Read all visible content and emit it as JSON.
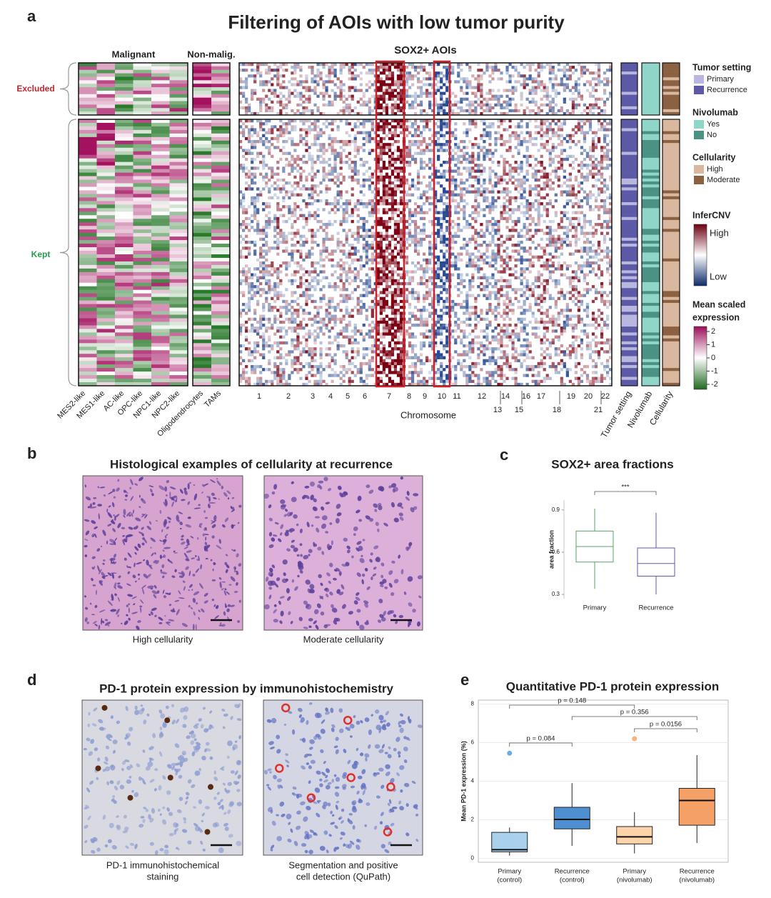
{
  "figure": {
    "panel_labels": [
      "a",
      "b",
      "c",
      "d",
      "e"
    ],
    "a": {
      "title": "Filtering of AOIs with low tumor purity",
      "group_headers": [
        "Malignant",
        "Non-malig.",
        "SOX2+ AOIs"
      ],
      "row_groups": [
        "Excluded",
        "Kept"
      ],
      "columns": [
        "MES2-like",
        "MES1-like",
        "AC-like",
        "OPC-like",
        "NPC1-like",
        "NPC2-like",
        "Oligodendrocytes",
        "TAMs"
      ],
      "chromosomes_top": [
        "1",
        "2",
        "3",
        "4",
        "5",
        "6",
        "7",
        "8",
        "9",
        "10",
        "11",
        "12",
        "14",
        "16",
        "17",
        "19",
        "20",
        "22"
      ],
      "chromosomes_bottom": [
        "13",
        "15",
        "18",
        "21"
      ],
      "x_label": "Chromosome",
      "annotation_columns": [
        "Tumor setting",
        "Nivolumab",
        "Cellularity"
      ]
    },
    "legend": {
      "groups": [
        {
          "title": "Tumor setting",
          "items": [
            {
              "label": "Primary",
              "color": "#b9b6e0"
            },
            {
              "label": "Recurrence",
              "color": "#5c5aa6"
            }
          ]
        },
        {
          "title": "Nivolumab",
          "items": [
            {
              "label": "Yes",
              "color": "#8fd6c9"
            },
            {
              "label": "No",
              "color": "#4b9285"
            }
          ]
        },
        {
          "title": "Cellularity",
          "items": [
            {
              "label": "High",
              "color": "#d9b89f"
            },
            {
              "label": "Moderate",
              "color": "#8c6142"
            }
          ]
        }
      ],
      "infercnv": {
        "title": "InferCNV",
        "high": "High",
        "low": "Low"
      },
      "mean_scaled": {
        "title_lines": [
          "Mean scaled",
          "expression"
        ],
        "ticks": [
          "2",
          "1",
          "0",
          "-1",
          "-2"
        ]
      }
    },
    "b": {
      "title": "Histological examples of cellularity at recurrence",
      "captions": [
        "High cellularity",
        "Moderate cellularity"
      ]
    },
    "d": {
      "title": "PD-1 protein expression by immunohistochemistry",
      "captions": [
        [
          "PD-1 immunohistochemical",
          "staining"
        ],
        [
          "Segmentation and positive",
          "cell detection (QuPath)"
        ]
      ]
    }
  },
  "chart_data": [
    {
      "type": "box",
      "title": "SOX2+ area fractions",
      "y_label": "area fraction",
      "categories": [
        [
          "Primary"
        ],
        [
          "Recurrence"
        ]
      ],
      "colors": [
        "#5aa469",
        "#5c5aa6"
      ],
      "whisker_low": [
        0.34,
        0.3
      ],
      "q1": [
        0.53,
        0.43
      ],
      "median": [
        0.64,
        0.52
      ],
      "q3": [
        0.75,
        0.63
      ],
      "whisker_high": [
        0.91,
        0.88
      ],
      "outliers": [
        [],
        []
      ],
      "ylim": [
        0.27,
        0.97
      ],
      "yticks": [
        0.3,
        0.6,
        0.9
      ],
      "grid": false,
      "annotations": [
        {
          "text": "***",
          "from": 0,
          "to": 1
        }
      ]
    },
    {
      "type": "box",
      "title": "Quantitative PD-1 protein expression",
      "y_label": "Mean PD-1 expression (%)",
      "categories": [
        [
          "Primary",
          "(control)"
        ],
        [
          "Recurrence",
          "(control)"
        ],
        [
          "Primary",
          "(nivolumab)"
        ],
        [
          "Recurrence",
          "(nivolumab)"
        ]
      ],
      "colors": [
        "#a9d1ee",
        "#4d8fd0",
        "#fdd3aa",
        "#f4a067"
      ],
      "point_colors": [
        "#6aaee0",
        "#2f6fb8",
        "#f9b27a",
        "#e8743a"
      ],
      "whisker_low": [
        0.15,
        0.65,
        0.26,
        0.8
      ],
      "q1": [
        0.34,
        1.53,
        0.75,
        1.72
      ],
      "median": [
        0.45,
        2.02,
        1.12,
        3.0
      ],
      "q3": [
        1.35,
        2.65,
        1.65,
        3.63
      ],
      "whisker_high": [
        1.6,
        3.9,
        2.4,
        5.35
      ],
      "outliers": [
        [
          5.45
        ],
        [],
        [
          6.2
        ],
        []
      ],
      "ylim": [
        -0.2,
        8.2
      ],
      "yticks": [
        0,
        2,
        4,
        6,
        8
      ],
      "grid": true,
      "annotations": [
        {
          "text": "p = 0.084",
          "from": 0,
          "to": 1
        },
        {
          "text": "p = 0.148",
          "from": 0,
          "to": 2
        },
        {
          "text": "p = 0.356",
          "from": 1,
          "to": 3
        },
        {
          "text": "p = 0.0156",
          "from": 2,
          "to": 3
        }
      ]
    }
  ]
}
